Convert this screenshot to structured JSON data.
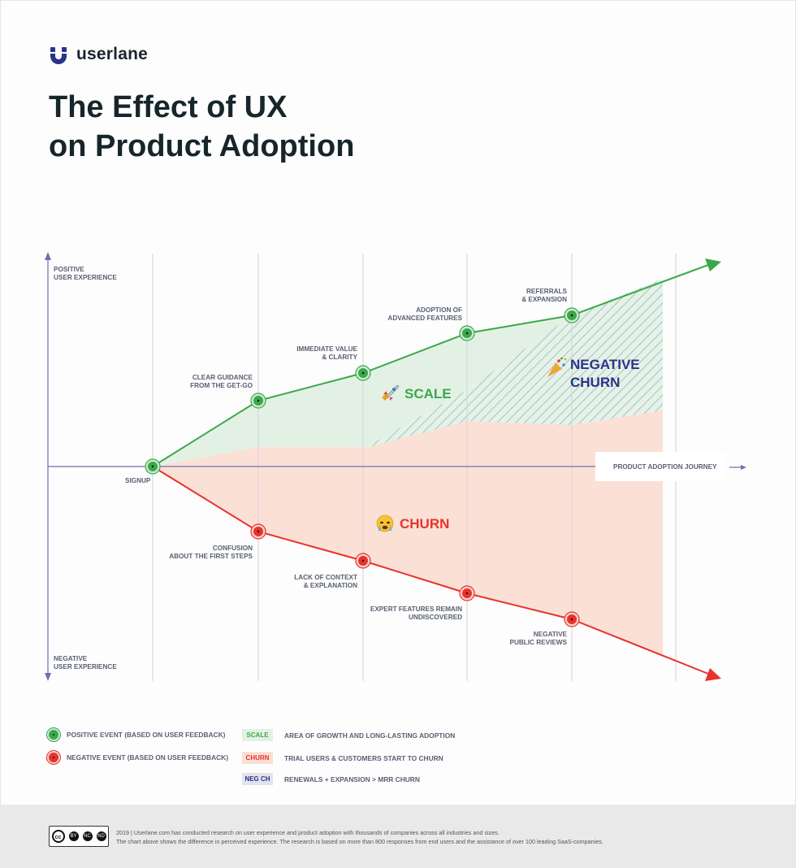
{
  "brand": {
    "name": "userlane"
  },
  "title": {
    "line1": "The Effect of UX",
    "line2": "on Product Adoption"
  },
  "axis": {
    "top_label_line1": "POSITIVE",
    "top_label_line2": "USER EXPERIENCE",
    "bottom_label_line1": "NEGATIVE",
    "bottom_label_line2": "USER EXPERIENCE",
    "journey_label": "PRODUCT ADOPTION JOURNEY",
    "start_label": "SIGNUP"
  },
  "positive_events": [
    {
      "line1": "CLEAR GUIDANCE",
      "line2": "FROM THE GET-GO"
    },
    {
      "line1": "IMMEDIATE VALUE",
      "line2": "& CLARITY"
    },
    {
      "line1": "ADOPTION OF",
      "line2": "ADVANCED FEATURES"
    },
    {
      "line1": "REFERRALS",
      "line2": "& EXPANSION"
    }
  ],
  "negative_events": [
    {
      "line1": "CONFUSION",
      "line2": "ABOUT THE FIRST STEPS"
    },
    {
      "line1": "LACK OF CONTEXT",
      "line2": "& EXPLANATION"
    },
    {
      "line1": "EXPERT FEATURES REMAIN",
      "line2": "UNDISCOVERED"
    },
    {
      "line1": "NEGATIVE",
      "line2": "PUBLIC REVIEWS"
    }
  ],
  "areas": {
    "scale": "SCALE",
    "churn": "CHURN",
    "negative_churn_line1": "NEGATIVE",
    "negative_churn_line2": "CHURN",
    "scale_icon": "rocket-icon",
    "churn_icon": "crying-face-icon",
    "negative_churn_icon": "party-popper-icon"
  },
  "legend": {
    "positive": "POSITIVE EVENT (BASED ON USER FEEDBACK)",
    "negative": "NEGATIVE EVENT (BASED ON USER FEEDBACK)",
    "scale_tag": "SCALE",
    "scale_desc": "AREA OF GROWTH AND LONG-LASTING ADOPTION",
    "churn_tag": "CHURN",
    "churn_desc": "TRIAL USERS & CUSTOMERS START TO CHURN",
    "negch_tag": "NEG CH",
    "negch_desc": "RENEWALS + EXPANSION > MRR CHURN"
  },
  "footer": {
    "line1": "2019 | Userlane.com has conducted research on user experience and product adoption with thousands of companies across all industries and sizes.",
    "line2": "The chart above shows the difference in perceived experience. The research is based on more than 800 responses from end users and the assistance of over 100 leading SaaS-companies.",
    "license_icon": "creative-commons-icon",
    "license_sub": [
      "BY",
      "NC",
      "ND"
    ]
  },
  "colors": {
    "positive": "#3aa84a",
    "negative": "#e8322c",
    "negative_churn": "#2b3388",
    "axis": "#6f6fb0",
    "scale_fill": "#e3f1e5",
    "churn_fill": "#fbe0d6"
  }
}
